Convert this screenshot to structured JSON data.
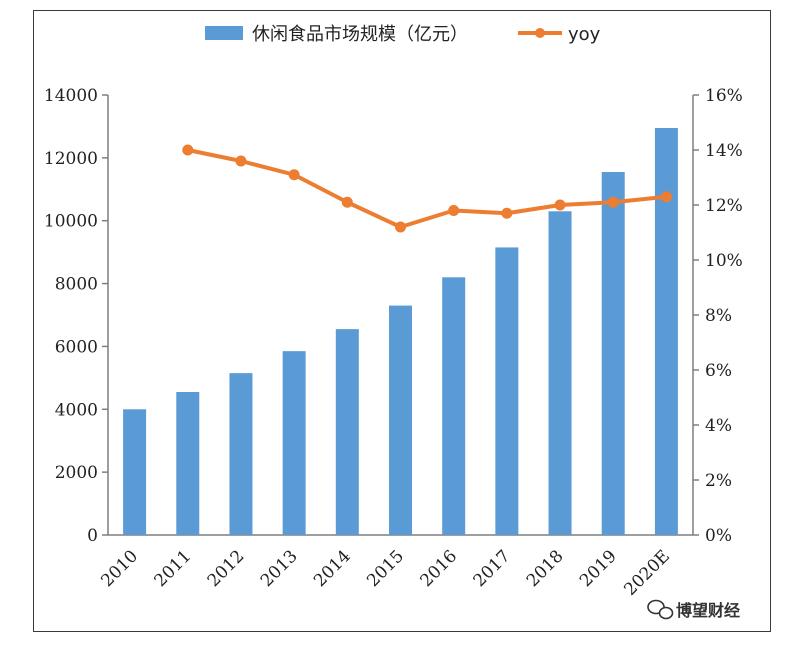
{
  "chart_data": {
    "type": "bar+line",
    "categories": [
      "2010",
      "2011",
      "2012",
      "2013",
      "2014",
      "2015",
      "2016",
      "2017",
      "2018",
      "2019",
      "2020E"
    ],
    "series": [
      {
        "name": "休闲食品市场规模（亿元）",
        "type": "bar",
        "axis": "left",
        "color": "#5b9bd5",
        "values": [
          4000,
          4550,
          5150,
          5850,
          6550,
          7300,
          8200,
          9150,
          10300,
          11550,
          12950
        ]
      },
      {
        "name": "yoy",
        "type": "line",
        "axis": "right",
        "color": "#ed7d31",
        "values": [
          null,
          14.0,
          13.6,
          13.1,
          12.1,
          11.2,
          11.8,
          11.7,
          12.0,
          12.1,
          12.3
        ]
      }
    ],
    "left_axis": {
      "ylim": [
        0,
        14000
      ],
      "ticks": [
        "0",
        "2000",
        "4000",
        "6000",
        "8000",
        "10000",
        "12000",
        "14000"
      ]
    },
    "right_axis": {
      "ylim": [
        0,
        16
      ],
      "ticks": [
        "0%",
        "2%",
        "4%",
        "6%",
        "8%",
        "10%",
        "12%",
        "14%",
        "16%"
      ]
    },
    "legend_position": "top",
    "grid": false
  },
  "watermark": {
    "icon": "wechat-icon",
    "text": "博望财经"
  }
}
